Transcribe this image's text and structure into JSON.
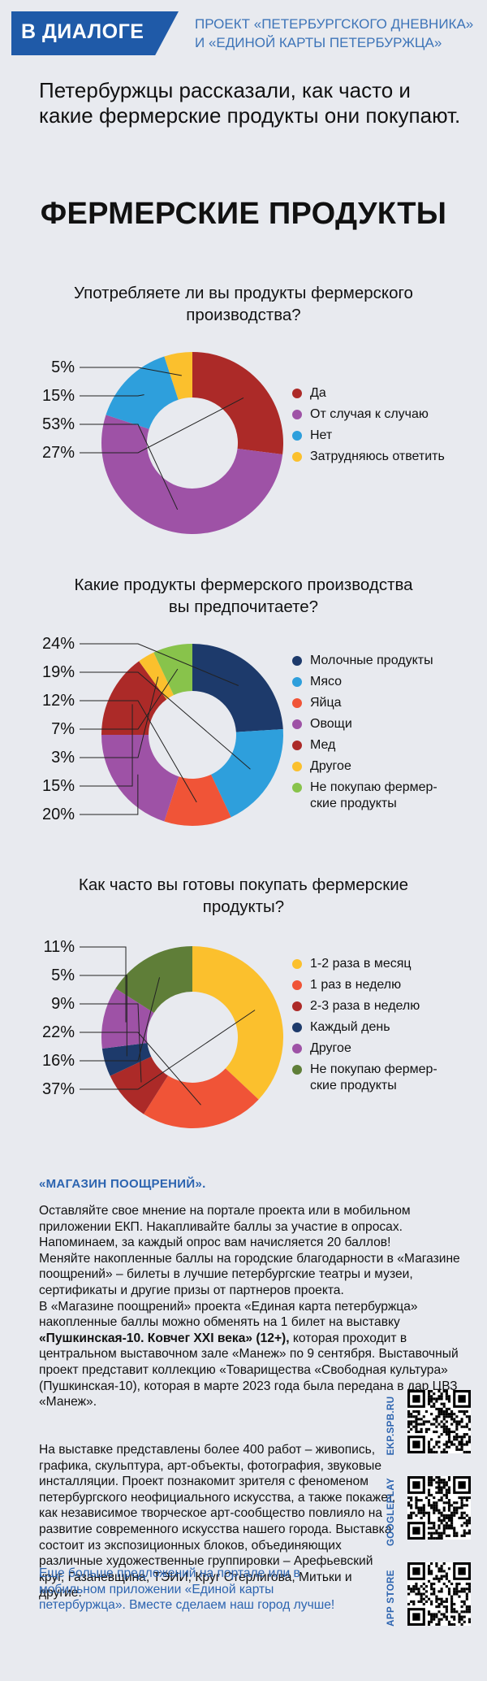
{
  "header": {
    "badge": "В ДИАЛОГЕ",
    "project_line1": "ПРОЕКТ «ПЕТЕРБУРГСКОГО ДНЕВНИКА»",
    "project_line2": "И «ЕДИНОЙ КАРТЫ ПЕТЕРБУРЖЦА»"
  },
  "intro": "Петербуржцы рассказали, как часто и какие фермерские продукты они покупают.",
  "main_title": "ФЕРМЕРСКИЕ ПРОДУКТЫ",
  "colors": {
    "accent": "#1f5aa8",
    "link": "#2c64b0",
    "darkred": "#ac2a28",
    "purple": "#9e52a6",
    "blue": "#2e9fdc",
    "yellow": "#fbc02d",
    "navy": "#1d3a6b",
    "orange": "#f05437",
    "green": "#88c34b",
    "olive": "#5f7e38"
  },
  "chart_data": [
    {
      "type": "pie",
      "title": "Употребляете ли вы продукты фермерского производства?",
      "labels": [
        "Да",
        "От случая к случаю",
        "Нет",
        "Затрудняюсь ответить"
      ],
      "values": [
        27,
        53,
        15,
        5
      ],
      "colors": [
        "#ac2a28",
        "#9e52a6",
        "#2e9fdc",
        "#fbc02d"
      ],
      "pct_labels": [
        "5%",
        "15%",
        "53%",
        "27%"
      ],
      "legend_position": "right"
    },
    {
      "type": "pie",
      "title": "Какие продукты фермерского производства вы предпочитаете?",
      "labels": [
        "Молочные продукты",
        "Мясо",
        "Яйца",
        "Овощи",
        "Мед",
        "Другое",
        "Не покупаю фермерские продукты"
      ],
      "values": [
        24,
        19,
        12,
        20,
        15,
        3,
        7
      ],
      "colors": [
        "#1d3a6b",
        "#2e9fdc",
        "#f05437",
        "#9e52a6",
        "#ac2a28",
        "#fbc02d",
        "#88c34b"
      ],
      "pct_labels": [
        "24%",
        "19%",
        "12%",
        "7%",
        "3%",
        "15%",
        "20%"
      ],
      "legend_position": "right"
    },
    {
      "type": "pie",
      "title": "Как часто вы готовы покупать фермерские продукты?",
      "labels": [
        "1-2 раза в месяц",
        "1 раз в неделю",
        "2-3 раза в неделю",
        "Каждый день",
        "Другое",
        "Не покупаю фермерские продукты"
      ],
      "values": [
        37,
        22,
        9,
        5,
        11,
        16
      ],
      "colors": [
        "#fbc02d",
        "#f05437",
        "#ac2a28",
        "#1d3a6b",
        "#9e52a6",
        "#5f7e38"
      ],
      "pct_labels": [
        "11%",
        "5%",
        "9%",
        "22%",
        "16%",
        "37%"
      ],
      "legend_position": "right"
    }
  ],
  "charts_text": [
    {
      "question_line1": "Употребляете ли вы продукты фермерского",
      "question_line2": "производства?",
      "legend": [
        {
          "line1": "Да",
          "line2": ""
        },
        {
          "line1": "От случая к случаю",
          "line2": ""
        },
        {
          "line1": "Нет",
          "line2": ""
        },
        {
          "line1": "Затрудняюсь ответить",
          "line2": ""
        }
      ]
    },
    {
      "question_line1": "Какие продукты фермерского производства",
      "question_line2": "вы предпочитаете?",
      "legend": [
        {
          "line1": "Молочные продукты",
          "line2": ""
        },
        {
          "line1": "Мясо",
          "line2": ""
        },
        {
          "line1": "Яйца",
          "line2": ""
        },
        {
          "line1": "Овощи",
          "line2": ""
        },
        {
          "line1": "Мед",
          "line2": ""
        },
        {
          "line1": "Другое",
          "line2": ""
        },
        {
          "line1": "Не покупаю фермер-",
          "line2": "ские продукты"
        }
      ]
    },
    {
      "question_line1": "Как часто вы готовы покупать фермерские",
      "question_line2": "продукты?",
      "legend": [
        {
          "line1": "1-2 раза в месяц",
          "line2": ""
        },
        {
          "line1": "1 раз в неделю",
          "line2": ""
        },
        {
          "line1": "2-3 раза в неделю",
          "line2": ""
        },
        {
          "line1": "Каждый день",
          "line2": ""
        },
        {
          "line1": "Другое",
          "line2": ""
        },
        {
          "line1": "Не покупаю фермер-",
          "line2": "ские продукты"
        }
      ]
    }
  ],
  "shop": {
    "title": "«МАГАЗИН ПООЩРЕНИЙ».",
    "p1": "Оставляйте свое мнение на портале проекта или в мобильном приложении ЕКП. Накапливайте баллы за участие в опросах. Напоминаем, за каждый опрос вам начисляется 20 баллов!",
    "p2": "Меняйте накопленные баллы на городские благодарности в «Магазине поощрений» – билеты в лучшие петербургские театры и музеи, сертификаты и другие призы от партнеров проекта.",
    "p3_a": "В «Магазине поощрений» проекта «Единая карта петербуржца» накопленные баллы можно обменять на 1 билет на выставку ",
    "p3_bold": "«Пушкинская-10. Ковчег XXI века» (12+),",
    "p3_b": " которая проходит в центральном выставочном зале «Манеж» по 9 сентября. Выставочный проект представит коллекцию «Товарищества «Свободная культура» (Пушкинская-10), которая в марте 2023 года была передана в дар ЦВЗ «Манеж».",
    "p4": "На выставке представлены более 400 работ – живопись, графика, скульптура, арт-объекты, фотография, звуковые инсталляции. Проект познакомит зрителя с феноменом петербургского неофициального искусства, а также покажет, как независимое творческое арт-сообщество повлияло на развитие современного искусства нашего города. Выставка состоит из экспозиционных блоков, объединяющих различные художественные группировки – Арефьевский круг, Газаневщина, ТЭИИ, Круг Стерлигова, Митьки и другие.",
    "cta": "Еще больше предложений на портале или в мобильном приложении «Единой карты петербуржца». Вместе сделаем наш город лучше!"
  },
  "qr_codes": [
    {
      "label": "EKP.SPB.RU"
    },
    {
      "label": "GOOGLEPLAY"
    },
    {
      "label": "APP STORE"
    }
  ]
}
